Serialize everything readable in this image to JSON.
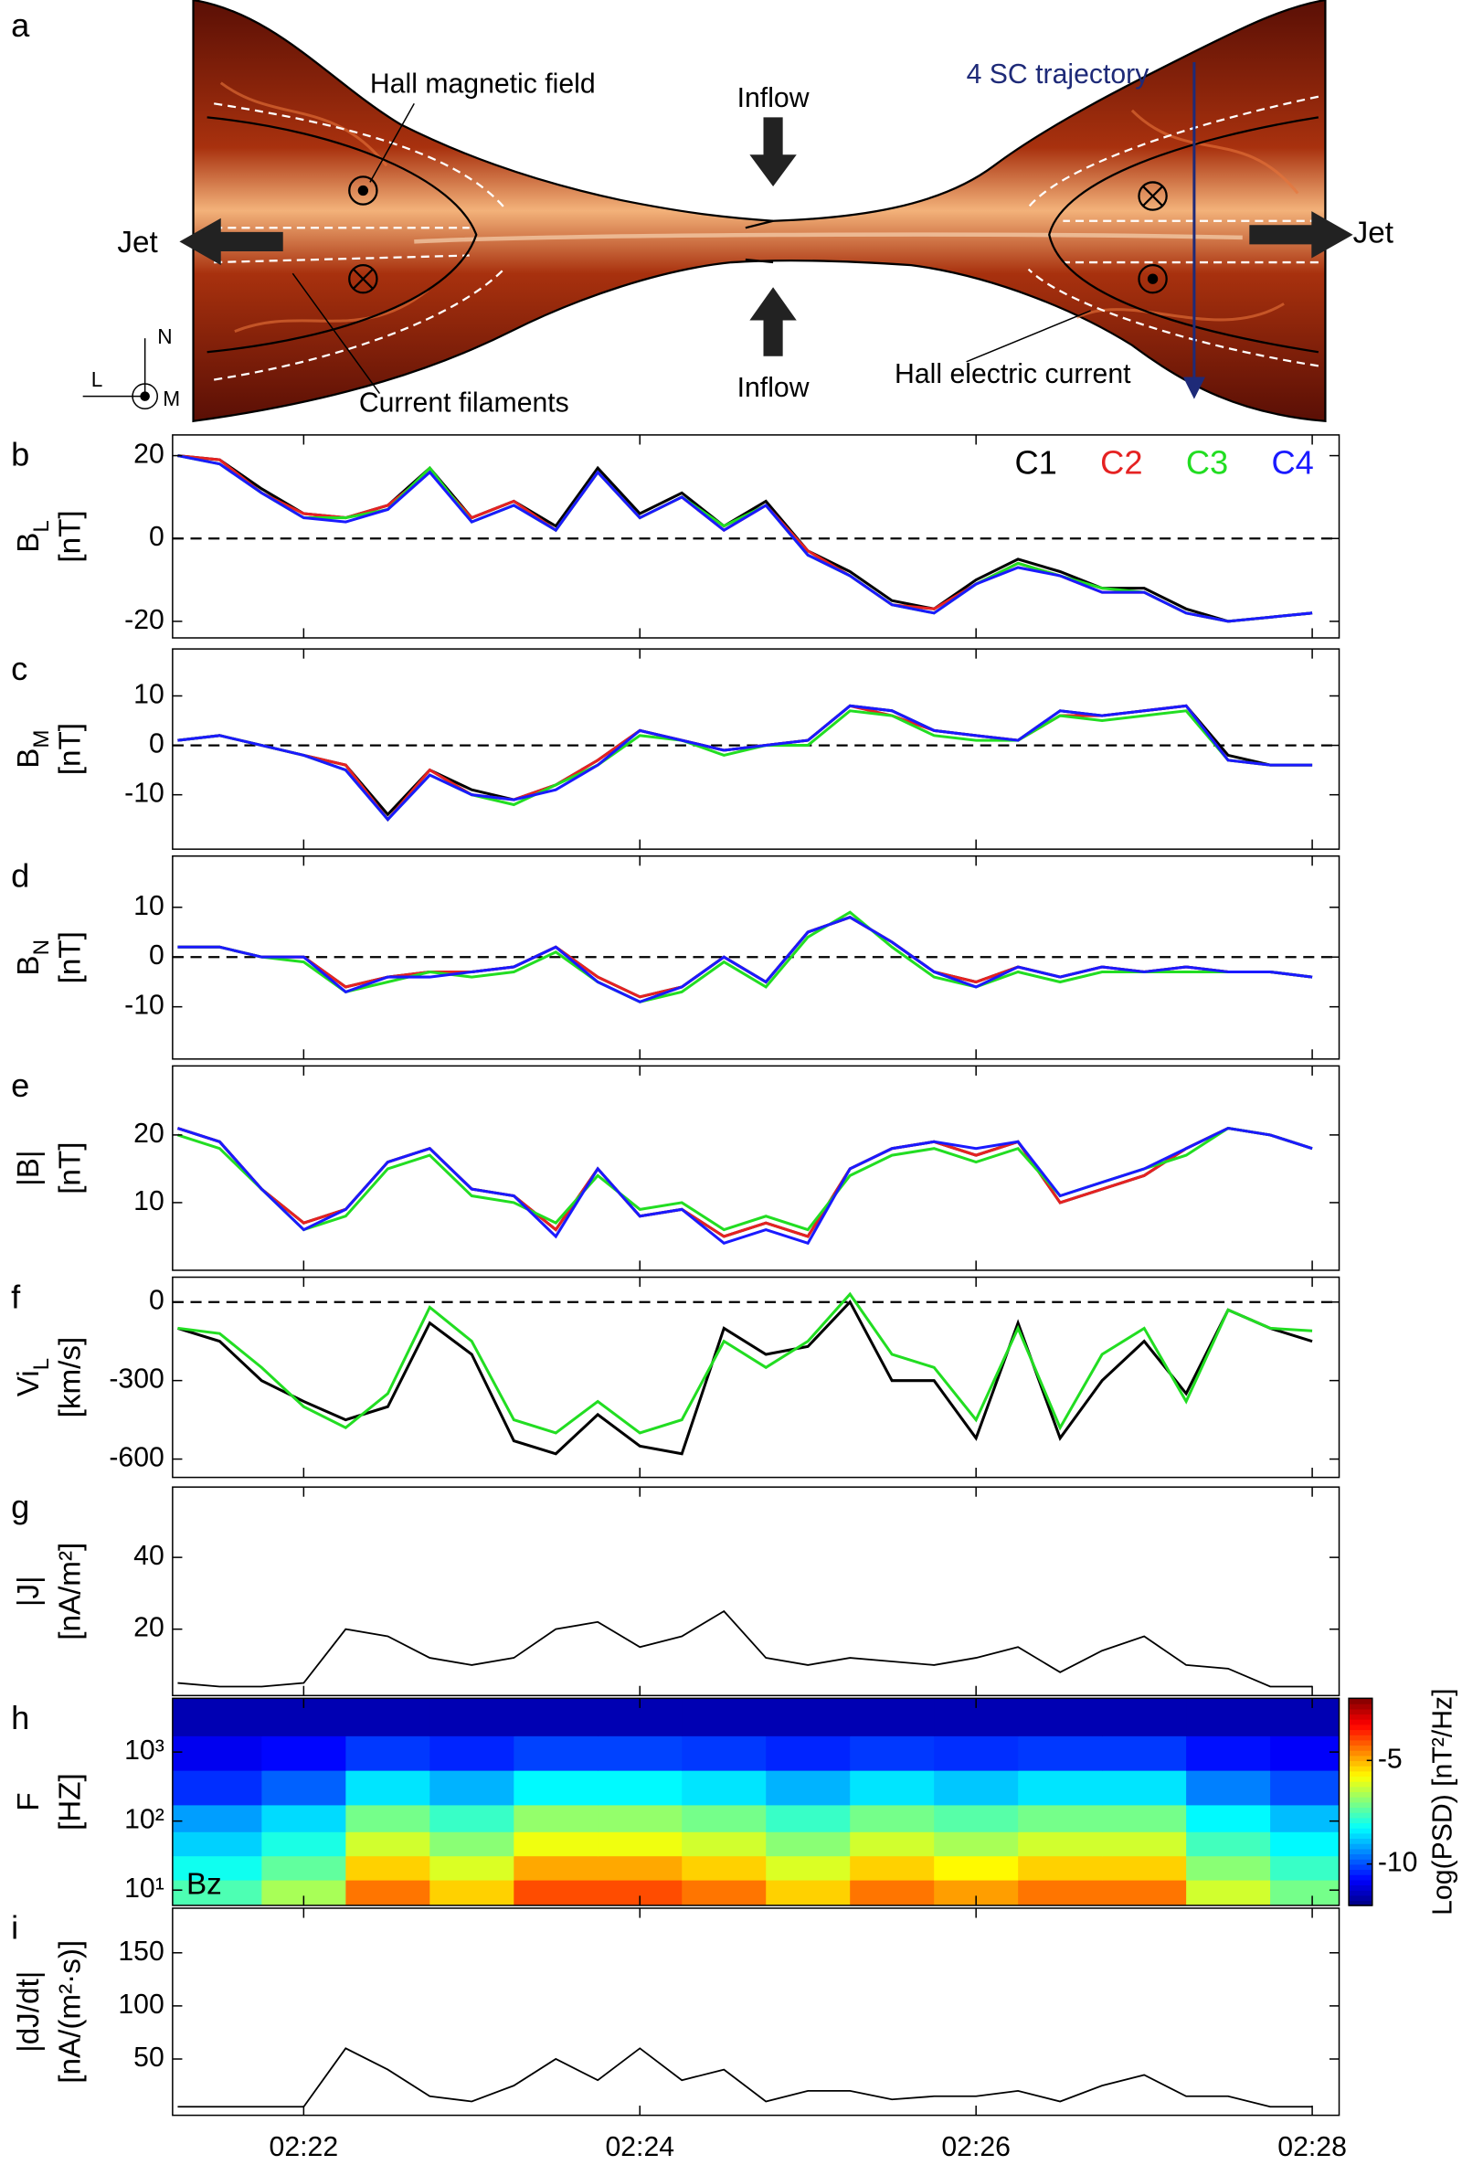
{
  "panel_a": {
    "letter": "a",
    "hall_field": "Hall magnetic field",
    "inflow_top": "Inflow",
    "inflow_bottom": "Inflow",
    "trajectory": "4 SC trajectory",
    "jet_left": "Jet",
    "jet_right": "Jet",
    "filaments": "Current filaments",
    "hall_current": "Hall electric current",
    "axis_n": "N",
    "axis_l": "L",
    "axis_m": "M"
  },
  "chart_data": [
    {
      "type": "line",
      "panel": "b",
      "ylabel": {
        "main": "B",
        "sub": "L",
        "unit": "[nT]"
      },
      "xlim": [
        21.22,
        28.16
      ],
      "xticks": [
        22,
        24,
        26,
        28
      ],
      "ylim": [
        -24,
        25
      ],
      "yticks": [
        -20,
        0,
        20
      ],
      "zero_line": true,
      "legend": "upper right",
      "x": [
        21.25,
        21.5,
        21.75,
        22,
        22.25,
        22.5,
        22.75,
        23,
        23.25,
        23.5,
        23.75,
        24,
        24.25,
        24.5,
        24.75,
        25,
        25.25,
        25.5,
        25.75,
        26,
        26.25,
        26.5,
        26.75,
        27,
        27.25,
        27.5,
        27.75,
        28
      ],
      "series": [
        {
          "name": "C1",
          "color": "#000000",
          "values": [
            20,
            19,
            12,
            6,
            5,
            8,
            17,
            5,
            9,
            3,
            17,
            6,
            11,
            3,
            9,
            -3,
            -8,
            -15,
            -17,
            -10,
            -5,
            -8,
            -12,
            -12,
            -17,
            -20,
            -19,
            -18
          ]
        },
        {
          "name": "C2",
          "color": "#e52222",
          "values": [
            20,
            19,
            11,
            6,
            5,
            8,
            16,
            5,
            9,
            2,
            16,
            5,
            10,
            2,
            8,
            -3,
            -9,
            -16,
            -17,
            -11,
            -6,
            -9,
            -13,
            -13,
            -18,
            -20,
            -19,
            -18
          ]
        },
        {
          "name": "C3",
          "color": "#22dd22",
          "values": [
            20,
            18,
            11,
            5,
            5,
            7,
            17,
            4,
            8,
            2,
            16,
            5,
            10,
            3,
            8,
            -4,
            -9,
            -16,
            -18,
            -11,
            -6,
            -9,
            -12,
            -13,
            -18,
            -20,
            -19,
            -18
          ]
        },
        {
          "name": "C4",
          "color": "#1a1aff",
          "values": [
            20,
            18,
            11,
            5,
            4,
            7,
            16,
            4,
            8,
            2,
            16,
            5,
            10,
            2,
            8,
            -4,
            -9,
            -16,
            -18,
            -11,
            -7,
            -9,
            -13,
            -13,
            -18,
            -20,
            -19,
            -18
          ]
        }
      ]
    },
    {
      "type": "line",
      "panel": "c",
      "ylabel": {
        "main": "B",
        "sub": "M",
        "unit": "[nT]"
      },
      "xlim": [
        21.22,
        28.16
      ],
      "xticks": [
        22,
        24,
        26,
        28
      ],
      "ylim": [
        -21,
        19.5
      ],
      "yticks": [
        -10,
        0,
        10
      ],
      "zero_line": true,
      "x": [
        21.25,
        21.5,
        21.75,
        22,
        22.25,
        22.5,
        22.75,
        23,
        23.25,
        23.5,
        23.75,
        24,
        24.25,
        24.5,
        24.75,
        25,
        25.25,
        25.5,
        25.75,
        26,
        26.25,
        26.5,
        26.75,
        27,
        27.25,
        27.5,
        27.75,
        28
      ],
      "series": [
        {
          "color": "#000000",
          "values": [
            1,
            2,
            0,
            -2,
            -4,
            -14,
            -5,
            -9,
            -11,
            -8,
            -3,
            3,
            1,
            -1,
            0,
            1,
            8,
            7,
            3,
            2,
            1,
            7,
            6,
            7,
            8,
            -2,
            -4,
            -4
          ]
        },
        {
          "color": "#e52222",
          "values": [
            1,
            2,
            0,
            -2,
            -4,
            -15,
            -5,
            -10,
            -11,
            -8,
            -3,
            3,
            1,
            -1,
            0,
            1,
            8,
            6,
            3,
            2,
            1,
            6,
            6,
            7,
            8,
            -3,
            -4,
            -4
          ]
        },
        {
          "color": "#22dd22",
          "values": [
            1,
            2,
            0,
            -2,
            -5,
            -15,
            -6,
            -10,
            -12,
            -8,
            -4,
            2,
            1,
            -2,
            0,
            0,
            7,
            6,
            2,
            1,
            1,
            6,
            5,
            6,
            7,
            -3,
            -4,
            -4
          ]
        },
        {
          "color": "#1a1aff",
          "values": [
            1,
            2,
            0,
            -2,
            -5,
            -15,
            -6,
            -10,
            -11,
            -9,
            -4,
            3,
            1,
            -1,
            0,
            1,
            8,
            7,
            3,
            2,
            1,
            7,
            6,
            7,
            8,
            -3,
            -4,
            -4
          ]
        }
      ]
    },
    {
      "type": "line",
      "panel": "d",
      "ylabel": {
        "main": "B",
        "sub": "N",
        "unit": "[nT]"
      },
      "xlim": [
        21.22,
        28.16
      ],
      "xticks": [
        22,
        24,
        26,
        28
      ],
      "ylim": [
        -20.5,
        20.3
      ],
      "yticks": [
        -10,
        0,
        10
      ],
      "zero_line": true,
      "x": [
        21.25,
        21.5,
        21.75,
        22,
        22.25,
        22.5,
        22.75,
        23,
        23.25,
        23.5,
        23.75,
        24,
        24.25,
        24.5,
        24.75,
        25,
        25.25,
        25.5,
        25.75,
        26,
        26.25,
        26.5,
        26.75,
        27,
        27.25,
        27.5,
        27.75,
        28
      ],
      "series": [
        {
          "color": "#000000",
          "values": [
            2,
            2,
            0,
            0,
            -6,
            -4,
            -3,
            -3,
            -2,
            2,
            -4,
            -8,
            -6,
            0,
            -5,
            5,
            8,
            3,
            -3,
            -5,
            -2,
            -4,
            -2,
            -3,
            -2,
            -3,
            -3,
            -4
          ]
        },
        {
          "color": "#e52222",
          "values": [
            2,
            2,
            0,
            0,
            -6,
            -4,
            -3,
            -3,
            -2,
            2,
            -4,
            -8,
            -6,
            0,
            -5,
            5,
            8,
            3,
            -3,
            -5,
            -2,
            -4,
            -2,
            -3,
            -2,
            -3,
            -3,
            -4
          ]
        },
        {
          "color": "#22dd22",
          "values": [
            2,
            2,
            0,
            -1,
            -7,
            -5,
            -3,
            -4,
            -3,
            1,
            -5,
            -9,
            -7,
            -1,
            -6,
            4,
            9,
            2,
            -4,
            -6,
            -3,
            -5,
            -3,
            -3,
            -3,
            -3,
            -3,
            -4
          ]
        },
        {
          "color": "#1a1aff",
          "values": [
            2,
            2,
            0,
            0,
            -7,
            -4,
            -4,
            -3,
            -2,
            2,
            -5,
            -9,
            -6,
            0,
            -5,
            5,
            8,
            3,
            -3,
            -6,
            -2,
            -4,
            -2,
            -3,
            -2,
            -3,
            -3,
            -4
          ]
        }
      ]
    },
    {
      "type": "line",
      "panel": "e",
      "ylabel": {
        "main": "|B|",
        "unit": "[nT]"
      },
      "xlim": [
        21.22,
        28.16
      ],
      "xticks": [
        22,
        24,
        26,
        28
      ],
      "ylim": [
        0,
        30.2
      ],
      "yticks": [
        10,
        20
      ],
      "x": [
        21.25,
        21.5,
        21.75,
        22,
        22.25,
        22.5,
        22.75,
        23,
        23.25,
        23.5,
        23.75,
        24,
        24.25,
        24.5,
        24.75,
        25,
        25.25,
        25.5,
        25.75,
        26,
        26.25,
        26.5,
        26.75,
        27,
        27.25,
        27.5,
        27.75,
        28
      ],
      "series": [
        {
          "color": "#000000",
          "values": [
            21,
            19,
            12,
            7,
            9,
            16,
            18,
            12,
            11,
            6,
            15,
            8,
            9,
            5,
            7,
            5,
            15,
            18,
            19,
            17,
            19,
            10,
            12,
            14,
            18,
            21,
            20,
            18
          ]
        },
        {
          "color": "#e52222",
          "values": [
            21,
            19,
            12,
            7,
            9,
            16,
            18,
            12,
            11,
            6,
            15,
            8,
            9,
            5,
            7,
            5,
            15,
            18,
            19,
            17,
            19,
            10,
            12,
            14,
            18,
            21,
            20,
            18
          ]
        },
        {
          "color": "#22dd22",
          "values": [
            20,
            18,
            12,
            6,
            8,
            15,
            17,
            11,
            10,
            7,
            14,
            9,
            10,
            6,
            8,
            6,
            14,
            17,
            18,
            16,
            18,
            11,
            13,
            15,
            17,
            21,
            20,
            18
          ]
        },
        {
          "color": "#1a1aff",
          "values": [
            21,
            19,
            12,
            6,
            9,
            16,
            18,
            12,
            11,
            5,
            15,
            8,
            9,
            4,
            6,
            4,
            15,
            18,
            19,
            18,
            19,
            11,
            13,
            15,
            18,
            21,
            20,
            18
          ]
        }
      ]
    },
    {
      "type": "line",
      "panel": "f",
      "ylabel": {
        "main": "Vi",
        "sub": "L",
        "unit": "[km/s]"
      },
      "xlim": [
        21.22,
        28.16
      ],
      "xticks": [
        22,
        24,
        26,
        28
      ],
      "ylim": [
        -670,
        95
      ],
      "yticks": [
        -600,
        -300,
        0
      ],
      "zero_line": true,
      "x": [
        21.25,
        21.5,
        21.75,
        22,
        22.25,
        22.5,
        22.75,
        23,
        23.25,
        23.5,
        23.75,
        24,
        24.25,
        24.5,
        24.75,
        25,
        25.25,
        25.5,
        25.75,
        26,
        26.25,
        26.5,
        26.75,
        27,
        27.25,
        27.5,
        27.75,
        28
      ],
      "series": [
        {
          "color": "#000000",
          "values": [
            -100,
            -150,
            -300,
            -380,
            -450,
            -400,
            -80,
            -200,
            -530,
            -580,
            -430,
            -550,
            -580,
            -100,
            -200,
            -170,
            0,
            -300,
            -300,
            -520,
            -80,
            -520,
            -300,
            -150,
            -350,
            -30,
            -100,
            -150
          ]
        },
        {
          "color": "#22dd22",
          "values": [
            -100,
            -120,
            -250,
            -400,
            -480,
            -350,
            -20,
            -150,
            -450,
            -500,
            -380,
            -500,
            -450,
            -150,
            -250,
            -150,
            30,
            -200,
            -250,
            -450,
            -100,
            -480,
            -200,
            -100,
            -380,
            -30,
            -100,
            -110
          ]
        }
      ]
    },
    {
      "type": "line",
      "panel": "g",
      "ylabel": {
        "main": "|J|",
        "unit": "[nA/m²]"
      },
      "xlim": [
        21.22,
        28.16
      ],
      "xticks": [
        22,
        24,
        26,
        28
      ],
      "ylim": [
        1.5,
        59.6
      ],
      "yticks": [
        20,
        40
      ],
      "x": [
        21.25,
        21.5,
        21.75,
        22,
        22.25,
        22.5,
        22.75,
        23,
        23.25,
        23.5,
        23.75,
        24,
        24.25,
        24.5,
        24.75,
        25,
        25.25,
        25.5,
        25.75,
        26,
        26.25,
        26.5,
        26.75,
        27,
        27.25,
        27.5,
        27.75,
        28
      ],
      "series": [
        {
          "color": "#000000",
          "values": [
            5,
            4,
            4,
            5,
            20,
            18,
            12,
            10,
            12,
            20,
            22,
            15,
            18,
            25,
            12,
            10,
            12,
            11,
            10,
            12,
            15,
            8,
            14,
            18,
            10,
            9,
            4,
            4
          ]
        }
      ]
    },
    {
      "type": "heatmap",
      "panel": "h",
      "ylabel": {
        "main": "F",
        "unit": "[HZ]"
      },
      "annotation": "Bz",
      "xlim": [
        21.22,
        28.16
      ],
      "xticks": [
        22,
        24,
        26,
        28
      ],
      "log_y": true,
      "ylim": [
        6,
        6000
      ],
      "yticks": [
        {
          "value": 10,
          "label": "10¹"
        },
        {
          "value": 100,
          "label": "10²"
        },
        {
          "value": 1000,
          "label": "10³"
        }
      ],
      "x": [
        21.5,
        22,
        22.5,
        23,
        23.5,
        24,
        24.5,
        25,
        25.5,
        26,
        26.5,
        27,
        27.5,
        28
      ],
      "y": [
        10,
        20,
        50,
        100,
        300,
        1000,
        3000
      ],
      "z": [
        [
          -7.5,
          -6.6,
          -4.4,
          -5.3,
          -4.0,
          -4.0,
          -4.4,
          -5.3,
          -4.4,
          -4.8,
          -4.4,
          -4.4,
          -6.2,
          -7.1
        ],
        [
          -8.1,
          -7.3,
          -5.3,
          -6.1,
          -4.9,
          -4.9,
          -5.3,
          -6.1,
          -5.3,
          -5.7,
          -5.3,
          -5.3,
          -6.9,
          -7.7
        ],
        [
          -8.7,
          -8.0,
          -6.2,
          -6.9,
          -5.9,
          -5.9,
          -6.2,
          -6.9,
          -6.2,
          -6.6,
          -6.2,
          -6.2,
          -7.6,
          -8.3
        ],
        [
          -9.2,
          -8.6,
          -7.1,
          -7.7,
          -6.8,
          -6.8,
          -7.1,
          -7.7,
          -7.1,
          -7.4,
          -7.1,
          -7.1,
          -8.3,
          -8.9
        ],
        [
          -10.3,
          -9.8,
          -8.5,
          -9.0,
          -8.3,
          -8.3,
          -8.5,
          -9.0,
          -8.5,
          -8.8,
          -8.5,
          -8.5,
          -9.5,
          -10.0
        ],
        [
          -10.9,
          -10.7,
          -10.2,
          -10.4,
          -10.1,
          -10.1,
          -10.2,
          -10.4,
          -10.2,
          -10.3,
          -10.2,
          -10.2,
          -10.6,
          -10.8
        ],
        [
          -11.5,
          -11.5,
          -11.5,
          -11.5,
          -11.5,
          -11.5,
          -11.5,
          -11.5,
          -11.5,
          -11.5,
          -11.5,
          -11.5,
          -11.5,
          -11.5
        ]
      ],
      "colormap": "jet",
      "clim": [
        -12,
        -2
      ],
      "cticks": [
        -10,
        -5
      ],
      "clabel": "Log(PSD) [nT²/Hz]"
    },
    {
      "type": "line",
      "panel": "i",
      "ylabel": {
        "main": "|dJ/dt|",
        "unit": "[nA/(m²·s)]"
      },
      "xlim": [
        21.22,
        28.16
      ],
      "xticks": [
        {
          "value": 22,
          "label": "02:22"
        },
        {
          "value": 24,
          "label": "02:24"
        },
        {
          "value": 26,
          "label": "02:26"
        },
        {
          "value": 28,
          "label": "02:28"
        }
      ],
      "ylim": [
        -3,
        192
      ],
      "yticks": [
        50,
        100,
        150
      ],
      "x": [
        21.25,
        21.5,
        21.75,
        22,
        22.25,
        22.5,
        22.75,
        23,
        23.25,
        23.5,
        23.75,
        24,
        24.25,
        24.5,
        24.75,
        25,
        25.25,
        25.5,
        25.75,
        26,
        26.25,
        26.5,
        26.75,
        27,
        27.25,
        27.5,
        27.75,
        28
      ],
      "series": [
        {
          "color": "#000000",
          "values": [
            5,
            5,
            5,
            5,
            60,
            40,
            15,
            10,
            25,
            50,
            30,
            60,
            30,
            40,
            10,
            20,
            20,
            12,
            15,
            15,
            20,
            10,
            25,
            35,
            15,
            15,
            5,
            5
          ]
        }
      ]
    }
  ]
}
